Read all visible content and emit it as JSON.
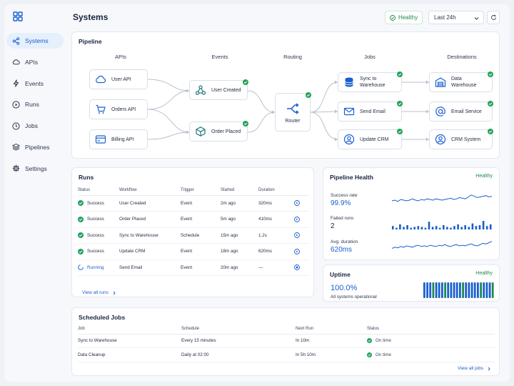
{
  "app": {
    "title": "Systems"
  },
  "nav": {
    "items": [
      {
        "label": "Systems",
        "icon": "share-nodes-icon",
        "active": true
      },
      {
        "label": "APIs",
        "icon": "cloud-icon"
      },
      {
        "label": "Events",
        "icon": "lightning-icon"
      },
      {
        "label": "Runs",
        "icon": "play-circle-icon"
      },
      {
        "label": "Jobs",
        "icon": "clock-icon"
      },
      {
        "label": "Pipelines",
        "icon": "layers-icon"
      },
      {
        "label": "Settings",
        "icon": "gear-icon"
      }
    ]
  },
  "header": {
    "status": "Healthy",
    "range": "Last 24h"
  },
  "pipeline": {
    "title": "Pipeline",
    "columns": [
      "APIs",
      "Events",
      "Routing",
      "Jobs",
      "Destinations"
    ],
    "apis": [
      "User API",
      "Orders API",
      "Billing API"
    ],
    "events": [
      "User Created",
      "Order Placed"
    ],
    "router": "Router",
    "jobs": [
      [
        "Sync to",
        "Warehouse"
      ],
      [
        "Send Email"
      ],
      [
        "Update CRM"
      ]
    ],
    "destinations": [
      [
        "Data",
        "Warehouse"
      ],
      [
        "Email Service"
      ],
      [
        "CRM System"
      ]
    ]
  },
  "runs": {
    "title": "Runs",
    "headers": [
      "Status",
      "Workflow",
      "Trigger",
      "Started",
      "Duration"
    ],
    "rows": [
      {
        "status": "Success",
        "workflow": "User Created",
        "trigger": "Event",
        "started": "2m ago",
        "duration": "320ms"
      },
      {
        "status": "Success",
        "workflow": "Order Placed",
        "trigger": "Event",
        "started": "5m ago",
        "duration": "410ms"
      },
      {
        "status": "Success",
        "workflow": "Sync to Warehouse",
        "trigger": "Schedule",
        "started": "15m ago",
        "duration": "1.2s"
      },
      {
        "status": "Success",
        "workflow": "Update CRM",
        "trigger": "Event",
        "started": "18m ago",
        "duration": "620ms"
      },
      {
        "status": "Running",
        "workflow": "Send Email",
        "trigger": "Event",
        "started": "20m ago",
        "duration": "—"
      }
    ],
    "link": "View all runs"
  },
  "health": {
    "title": "Pipeline Health",
    "badge": "Healthy",
    "success_label": "Success rate",
    "success_value": "99.9%",
    "failed_label": "Failed runs",
    "failed_value": "2",
    "duration_label": "Avg. duration",
    "duration_value": "620ms",
    "success_trend": [
      0.45,
      0.5,
      0.4,
      0.55,
      0.5,
      0.45,
      0.5,
      0.6,
      0.5,
      0.45,
      0.55,
      0.5,
      0.6,
      0.55,
      0.5,
      0.6,
      0.55,
      0.5,
      0.55,
      0.6,
      0.65,
      0.55,
      0.6,
      0.7,
      0.65,
      0.6,
      0.75,
      0.9,
      0.8,
      0.7,
      0.75,
      0.8,
      0.85,
      0.75,
      0.8
    ],
    "failed_trend": [
      0.4,
      0.2,
      0.6,
      0.3,
      0.5,
      0.2,
      0.3,
      0.4,
      0.3,
      0.2,
      0.9,
      0.3,
      0.4,
      0.2,
      0.5,
      0.3,
      0.2,
      0.4,
      0.6,
      0.3,
      0.5,
      0.3,
      0.7,
      0.4,
      0.5,
      1.0,
      0.4,
      0.6
    ],
    "duration_trend": [
      0.3,
      0.4,
      0.35,
      0.45,
      0.4,
      0.5,
      0.45,
      0.4,
      0.5,
      0.55,
      0.45,
      0.5,
      0.45,
      0.55,
      0.5,
      0.45,
      0.55,
      0.5,
      0.6,
      0.5,
      0.45,
      0.55,
      0.6,
      0.5,
      0.55,
      0.5,
      0.6,
      0.65,
      0.55,
      0.5,
      0.6,
      0.7,
      0.65,
      0.75,
      0.85
    ],
    "colors": {
      "accent": "#1a5fd0",
      "ok": "#1f8a4c"
    }
  },
  "uptime": {
    "title": "Uptime",
    "badge": "Healthy",
    "value": "100.0%",
    "sub": "All systems operational",
    "bars": [
      "b",
      "b",
      "b",
      "g",
      "b",
      "b",
      "b",
      "g",
      "b",
      "b",
      "b",
      "b",
      "b",
      "g",
      "b",
      "b",
      "b",
      "b",
      "b",
      "g",
      "b",
      "b",
      "b",
      "g"
    ]
  },
  "scheduled": {
    "title": "Scheduled Jobs",
    "headers": [
      "Job",
      "Schedule",
      "Next Run",
      "Status"
    ],
    "rows": [
      {
        "job": "Sync to Warehouse",
        "schedule": "Every 15 minutes",
        "next": "In 10m",
        "status": "On time"
      },
      {
        "job": "Data Cleanup",
        "schedule": "Daily at 02:00",
        "next": "In 5h 10m",
        "status": "On time"
      }
    ],
    "link": "View all jobs"
  }
}
